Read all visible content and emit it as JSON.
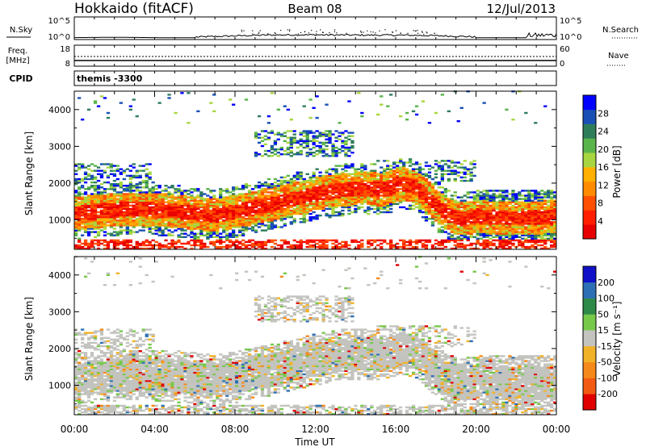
{
  "header": {
    "site": "Hokkaido (fitACF)",
    "beam": "Beam 08",
    "date": "12/Jul/2013"
  },
  "nsky_panel": {
    "left_label": "N.Sky",
    "right_label": "N.Search",
    "left_ticks": [
      "10^5",
      "10^0"
    ],
    "right_ticks": [
      "10^5",
      "10^0"
    ]
  },
  "freq_panel": {
    "left_label_top": "Freq.",
    "left_label_unit": "[MHz]",
    "left_ticks": [
      "18",
      "8"
    ],
    "right_ticks": [
      "60",
      "0"
    ],
    "right_label": "Nave"
  },
  "cpid_panel": {
    "label": "CPID",
    "value": "themis -3300"
  },
  "chart_data": [
    {
      "type": "heatmap",
      "name": "power",
      "ylabel": "Slant Range [km]",
      "yticks": [
        "1000",
        "2000",
        "3000",
        "4000"
      ],
      "ylim": [
        200,
        4500
      ],
      "xlim": [
        0,
        24
      ],
      "colorbar": {
        "label": "Power [dB]",
        "tick_labels": [
          "4",
          "8",
          "12",
          "16",
          "20",
          "24",
          "28"
        ],
        "colors": [
          "#0000ff",
          "#1a4fb5",
          "#2e7d5a",
          "#5ab54a",
          "#a8d640",
          "#ffb000",
          "#ff8c00",
          "#ff5000",
          "#ff1e00",
          "#e80000"
        ]
      }
    },
    {
      "type": "heatmap",
      "name": "velocity",
      "ylabel": "Slant Range [km]",
      "yticks": [
        "1000",
        "2000",
        "3000",
        "4000"
      ],
      "ylim": [
        200,
        4500
      ],
      "xlim": [
        0,
        24
      ],
      "xticks": [
        "00:00",
        "04:00",
        "08:00",
        "12:00",
        "16:00",
        "20:00",
        "00:00"
      ],
      "xlabel": "Time UT",
      "colorbar": {
        "label": "Velocity [m s⁻¹]",
        "tick_labels": [
          "200",
          "100",
          "50",
          "15",
          "-15",
          "-50",
          "-100",
          "-200"
        ],
        "colors": [
          "#1010c8",
          "#2d6fb4",
          "#2e8a48",
          "#77c94a",
          "#c3c3bf",
          "#f2b227",
          "#f5891a",
          "#f25a12",
          "#e00000"
        ]
      }
    }
  ]
}
